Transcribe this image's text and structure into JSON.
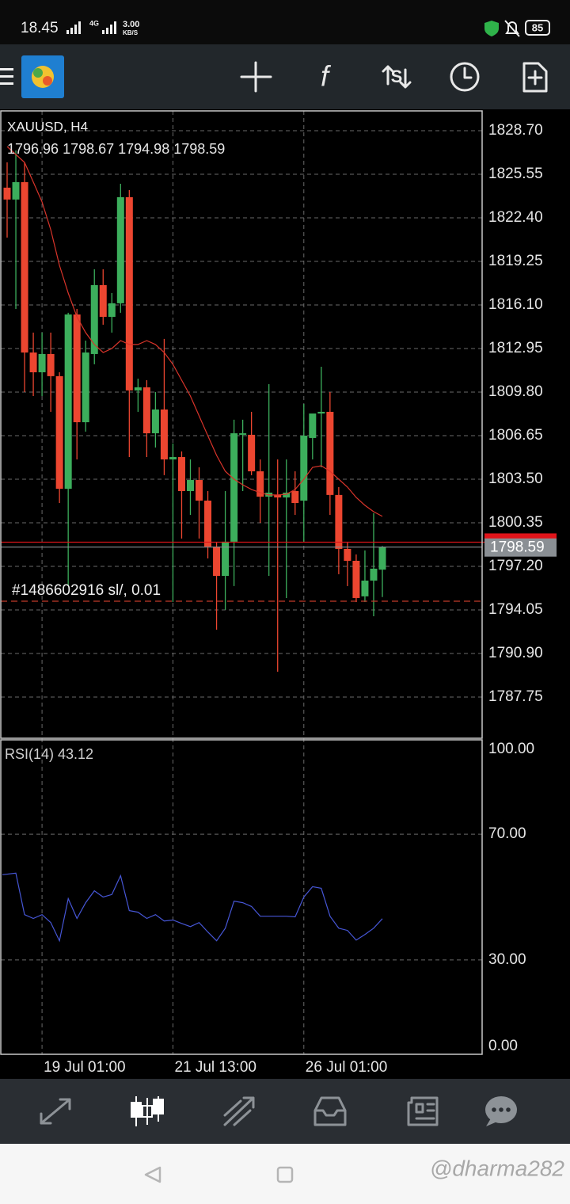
{
  "status_bar": {
    "time": "18.45",
    "network": "4G",
    "speed": "3.00",
    "speed_unit": "KB/S",
    "battery": "85"
  },
  "watermark": "@dharma282",
  "chart_data": [
    {
      "type": "candlestick",
      "title": "XAUUSD, H4",
      "subtitle": "1796.96 1798.67 1794.98 1798.59",
      "categories": [
        null,
        null,
        null,
        null,
        "19 Jul 01:00",
        null,
        null,
        null,
        null,
        null,
        null,
        null,
        null,
        null,
        null,
        null,
        null,
        null,
        null,
        "21 Jul 13:00",
        null,
        null,
        null,
        null,
        null,
        null,
        null,
        null,
        null,
        null,
        null,
        null,
        null,
        null,
        "26 Jul 01:00",
        null,
        null,
        null,
        null,
        null,
        null,
        null,
        null,
        null
      ],
      "candles": {
        "open": [
          1824.58,
          1823.72,
          1824.98,
          1812.66,
          1811.23,
          1812.55,
          1810.95,
          1802.81,
          1815.41,
          1807.62,
          1812.55,
          1817.53,
          1815.24,
          1816.22,
          1823.89,
          1809.92,
          1810.14,
          1806.82,
          1808.54,
          1804.93,
          1805.1,
          1802.64,
          1803.44,
          1801.95,
          1798.63,
          1796.51,
          1798.98,
          1806.71,
          1806.71,
          1804.07,
          1802.24,
          1802.36,
          1802.18,
          1802.64,
          1801.95,
          1806.48,
          1808.25,
          1808.37,
          1802.36,
          1798.46,
          1797.6,
          1795.03,
          1796.17,
          1796.96
        ],
        "high": [
          1826.41,
          1827.27,
          1826.41,
          1814.1,
          1814.1,
          1814.1,
          1811.23,
          1815.53,
          1815.81,
          1813.52,
          1818.68,
          1818.68,
          1816.96,
          1824.86,
          1824.4,
          1810.77,
          1810.66,
          1809.8,
          1813.64,
          1806.08,
          1805.51,
          1804.93,
          1804.36,
          1802.64,
          1798.92,
          1802.64,
          1807.8,
          1807.8,
          1808.37,
          1804.93,
          1810.37,
          1804.93,
          1804.93,
          1804.07,
          1808.94,
          1807.8,
          1811.63,
          1809.8,
          1802.93,
          1798.92,
          1798.06,
          1798.35,
          1801.04,
          1798.67
        ],
        "low": [
          1820.97,
          1815.81,
          1809.8,
          1809.51,
          1809.51,
          1808.37,
          1801.78,
          1795.77,
          1804.93,
          1806.94,
          1811.81,
          1814.67,
          1814.1,
          1815.53,
          1805.1,
          1808.37,
          1805.1,
          1805.79,
          1803.79,
          1794.62,
          1799.21,
          1800.92,
          1799.21,
          1797.77,
          1792.62,
          1794.05,
          1795.77,
          1802.64,
          1803.79,
          1800.35,
          1796.51,
          1789.58,
          1794.91,
          1800.92,
          1798.98,
          1804.93,
          1804.36,
          1800.92,
          1796.63,
          1795.77,
          1794.62,
          1794.62,
          1793.59,
          1794.98
        ],
        "close": [
          1823.72,
          1824.98,
          1812.66,
          1811.23,
          1812.55,
          1810.95,
          1802.81,
          1815.41,
          1807.62,
          1812.66,
          1817.53,
          1815.24,
          1816.22,
          1823.89,
          1809.92,
          1810.14,
          1806.82,
          1808.54,
          1804.93,
          1805.1,
          1802.64,
          1803.44,
          1801.95,
          1798.63,
          1796.51,
          1798.98,
          1806.82,
          1806.82,
          1804.07,
          1802.24,
          1802.53,
          1802.18,
          1802.53,
          1801.78,
          1806.65,
          1808.25,
          1808.37,
          1802.36,
          1798.46,
          1797.6,
          1794.91,
          1796.17,
          1797.03,
          1798.59
        ]
      },
      "up_color": "#3cae5c",
      "down_color": "#ec4630",
      "overlay": {
        "color": "#d9342a",
        "values": [
          1827.55,
          1826.98,
          1826.41,
          1824.98,
          1823.55,
          1821.54,
          1818.96,
          1816.96,
          1815.24,
          1814.1,
          1813.24,
          1812.66,
          1812.95,
          1813.52,
          1813.24,
          1813.24,
          1813.52,
          1813.24,
          1812.66,
          1811.81,
          1810.66,
          1809.51,
          1808.08,
          1806.65,
          1805.22,
          1804.07,
          1803.5,
          1803.1,
          1802.76,
          1802.53,
          1802.36,
          1802.36,
          1802.41,
          1802.76,
          1803.5,
          1804.36,
          1804.47,
          1804.07,
          1803.5,
          1802.93,
          1802.18,
          1801.61,
          1801.15,
          1800.81
        ]
      },
      "ask": 1798.95,
      "ask_color": "#e0141a",
      "bid_color": "#8a8f94",
      "sl_line": {
        "label": "#1486602916 sl/, 0.01",
        "value": 1794.68,
        "color": "#c0392b"
      },
      "ylim": [
        1784.77,
        1830.13
      ],
      "yticks": [
        {
          "value": 1828.7,
          "label": "1828.70"
        },
        1825.55,
        {
          "value": 1822.4,
          "label": "1822.40"
        },
        1819.25,
        {
          "value": 1816.1,
          "label": "1816.10"
        },
        1812.95,
        {
          "value": 1809.8,
          "label": "1809.80"
        },
        1806.65,
        {
          "value": 1803.5,
          "label": "1803.50"
        },
        1800.35,
        {
          "value": 1797.2,
          "label": "1797.20"
        },
        1794.05,
        {
          "value": 1790.9,
          "label": "1790.90"
        },
        1787.75
      ],
      "grid": true
    },
    {
      "type": "line",
      "title": "RSI(14) 43.12",
      "color": "#4656d6",
      "values": [
        57.1,
        57.6,
        44.4,
        43.2,
        44.4,
        41.9,
        36.1,
        49.5,
        43.2,
        48.2,
        52.0,
        50.0,
        50.8,
        56.8,
        45.7,
        45.2,
        43.2,
        44.4,
        42.4,
        42.7,
        41.6,
        40.6,
        41.9,
        38.9,
        36.1,
        40.1,
        48.7,
        48.2,
        47.0,
        43.9,
        43.9,
        43.9,
        43.9,
        43.7,
        50.0,
        53.3,
        52.8,
        43.9,
        40.1,
        39.4,
        36.3,
        38.1,
        40.1,
        43.12
      ],
      "ylim": [
        0,
        100
      ],
      "yticks": [
        {
          "value": 100,
          "label": "100.00"
        },
        {
          "value": 70,
          "label": "70.00"
        },
        {
          "value": 30,
          "label": "30.00"
        },
        {
          "value": 0,
          "label": "0.00"
        }
      ],
      "grid": true
    }
  ]
}
